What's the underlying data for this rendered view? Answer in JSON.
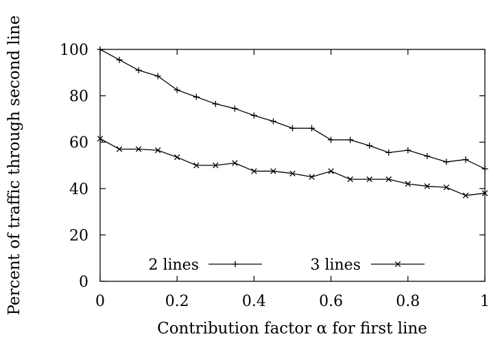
{
  "chart_data": {
    "type": "line",
    "title": "",
    "xlabel": "Contribution factor α for first line",
    "ylabel": "Percent of traffic through second line",
    "xlim": [
      0,
      1
    ],
    "ylim": [
      0,
      100
    ],
    "xticks": [
      0,
      0.2,
      0.4,
      0.6,
      0.8,
      1
    ],
    "xtick_labels": [
      "0",
      "0.2",
      "0.4",
      "0.6",
      "0.8",
      "1"
    ],
    "yticks": [
      0,
      20,
      40,
      60,
      80,
      100
    ],
    "ytick_labels": [
      "0",
      "20",
      "40",
      "60",
      "80",
      "100"
    ],
    "grid": false,
    "legend_position": "bottom",
    "x": [
      0,
      0.05,
      0.1,
      0.15,
      0.2,
      0.25,
      0.3,
      0.35,
      0.4,
      0.45,
      0.5,
      0.55,
      0.6,
      0.65,
      0.7,
      0.75,
      0.8,
      0.85,
      0.9,
      0.95,
      1.0
    ],
    "series": [
      {
        "name": "2 lines",
        "marker": "plus",
        "color": "#000000",
        "values": [
          100,
          95.5,
          91,
          88.5,
          82.5,
          79.5,
          76.5,
          74.5,
          71.5,
          69,
          66,
          66,
          61,
          61,
          58.5,
          55.5,
          56.5,
          54,
          51.5,
          52.5,
          48.5
        ]
      },
      {
        "name": "3 lines",
        "marker": "cross",
        "color": "#000000",
        "values": [
          61.5,
          57,
          57,
          56.5,
          53.5,
          50,
          50,
          51,
          47.5,
          47.5,
          46.5,
          45,
          47.5,
          44,
          44,
          44,
          42,
          41,
          40.5,
          37,
          38
        ]
      }
    ]
  }
}
